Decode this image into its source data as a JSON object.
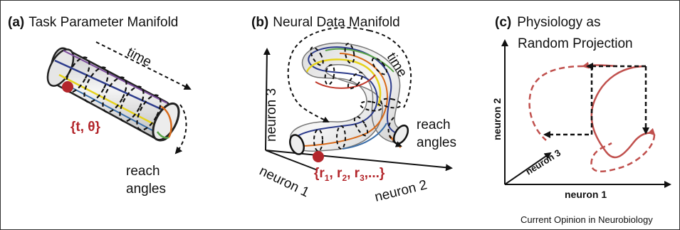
{
  "panels": {
    "a": {
      "letter": "(a)",
      "title": "Task Parameter Manifold",
      "time_label": "time",
      "point_label": "{t, θ}",
      "reach_label_1": "reach",
      "reach_label_2": "angles"
    },
    "b": {
      "letter": "(b)",
      "title": "Neural Data Manifold",
      "time_label": "time",
      "reach_label_1": "reach",
      "reach_label_2": "angles",
      "point_label": "{r",
      "point_label_tail": ", r",
      "point_label_tail2": ", r",
      "point_label_end": ",...}",
      "sub_1": "1",
      "sub_2": "2",
      "sub_3": "3",
      "axis_x": "neuron 2",
      "axis_y": "neuron 3",
      "axis_z": "neuron 1"
    },
    "c": {
      "letter": "(c)",
      "title_1": "Physiology as",
      "title_2": "Random Projection",
      "axis_x": "neuron 1",
      "axis_y": "neuron 2",
      "axis_z": "neuron 3"
    }
  },
  "credit": "Current Opinion in Neurobiology",
  "colors": {
    "point": "#b3262b",
    "trajectory": "#c0504d",
    "axis": "#111111"
  }
}
